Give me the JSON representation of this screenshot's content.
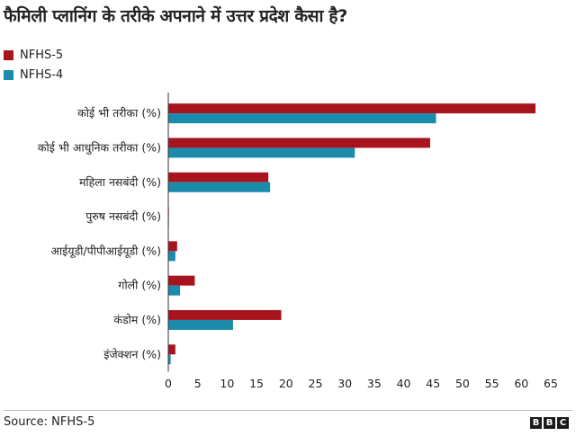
{
  "chart_data": {
    "type": "bar",
    "orientation": "horizontal",
    "title": "फैमिली प्लानिंग के तरीके अपनाने में उत्तर प्रदेश कैसा है?",
    "categories": [
      "कोई भी तरीका (%)",
      "कोई भी आधुनिक तरीका (%)",
      "महिला नसबंदी (%)",
      "पुरुष नसबंदी (%)",
      "आईयूडी/पीपीआईयूडी (%)",
      "गोली (%)",
      "कंडोम (%)",
      "इंजेक्शन (%)"
    ],
    "series": [
      {
        "name": "NFHS-5",
        "color": "#a8141e",
        "values": [
          62.4,
          44.5,
          17.0,
          0.1,
          1.5,
          4.5,
          19.2,
          1.2
        ]
      },
      {
        "name": "NFHS-4",
        "color": "#1b8bab",
        "values": [
          45.5,
          31.7,
          17.3,
          0.1,
          1.2,
          2.0,
          11.0,
          0.4
        ]
      }
    ],
    "xlim": [
      0,
      65
    ],
    "xticks": [
      "0",
      "5",
      "10",
      "15",
      "20",
      "25",
      "30",
      "35",
      "40",
      "45",
      "50",
      "55",
      "60",
      "65"
    ],
    "grid": false,
    "legend": "top-left"
  },
  "footer": {
    "source": "Source: NFHS-5",
    "logo": [
      "B",
      "B",
      "C"
    ]
  }
}
